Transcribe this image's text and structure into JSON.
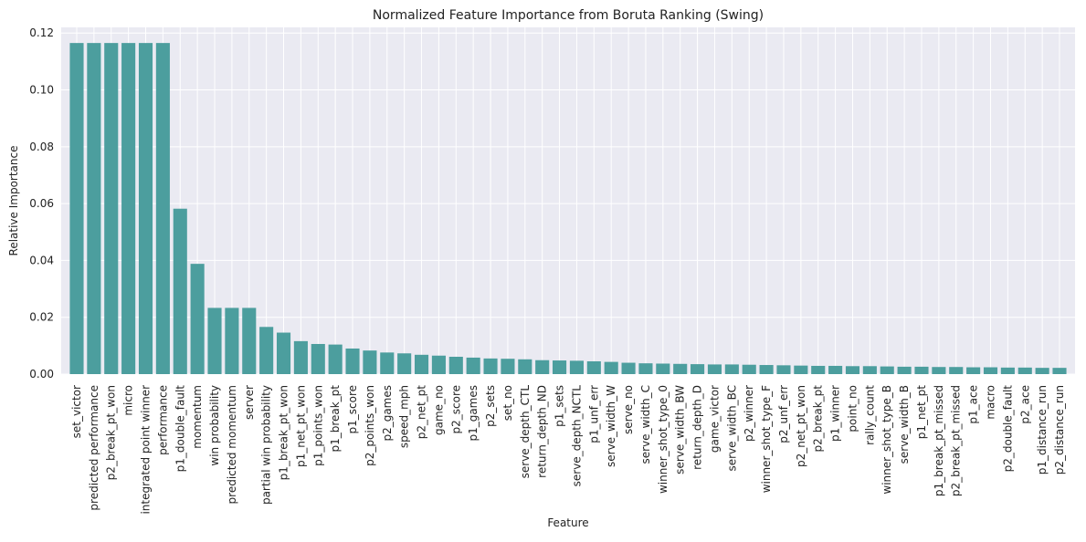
{
  "chart_data": {
    "type": "bar",
    "title": "Normalized Feature Importance from Boruta Ranking (Swing)",
    "xlabel": "Feature",
    "ylabel": "Relative Importance",
    "ylim": [
      0,
      0.122
    ],
    "yticks": [
      "0.00",
      "0.02",
      "0.04",
      "0.06",
      "0.08",
      "0.10",
      "0.12"
    ],
    "grid": true,
    "bar_color": "#4c9e9e",
    "background_color": "#eaeaf2",
    "categories": [
      "set_victor",
      "predicted performance",
      "p2_break_pt_won",
      "micro",
      "integrated point winner",
      "performance",
      "p1_double_fault",
      "momentum",
      "win probability",
      "predicted momentum",
      "server",
      "partial win probability",
      "p1_break_pt_won",
      "p1_net_pt_won",
      "p1_points_won",
      "p1_break_pt",
      "p1_score",
      "p2_points_won",
      "p2_games",
      "speed_mph",
      "p2_net_pt",
      "game_no",
      "p2_score",
      "p1_games",
      "p2_sets",
      "set_no",
      "serve_depth_CTL",
      "return_depth_ND",
      "p1_sets",
      "serve_depth_NCTL",
      "p1_unf_err",
      "serve_width_W",
      "serve_no",
      "serve_width_C",
      "winner_shot_type_0",
      "serve_width_BW",
      "return_depth_D",
      "game_victor",
      "serve_width_BC",
      "p2_winner",
      "winner_shot_type_F",
      "p2_unf_err",
      "p2_net_pt_won",
      "p2_break_pt",
      "p1_winner",
      "point_no",
      "rally_count",
      "winner_shot_type_B",
      "serve_width_B",
      "p1_net_pt",
      "p1_break_pt_missed",
      "p2_break_pt_missed",
      "p1_ace",
      "macro",
      "p2_double_fault",
      "p2_ace",
      "p1_distance_run",
      "p2_distance_run"
    ],
    "values": [
      0.1165,
      0.1165,
      0.1165,
      0.1165,
      0.1165,
      0.1165,
      0.0582,
      0.0388,
      0.0233,
      0.0233,
      0.0233,
      0.0166,
      0.0146,
      0.0116,
      0.0106,
      0.0104,
      0.009,
      0.0083,
      0.0076,
      0.0073,
      0.0068,
      0.0065,
      0.0061,
      0.0058,
      0.0055,
      0.0054,
      0.0052,
      0.0049,
      0.0048,
      0.0047,
      0.0045,
      0.0043,
      0.004,
      0.0038,
      0.0037,
      0.0036,
      0.0035,
      0.0034,
      0.0034,
      0.0033,
      0.0032,
      0.0031,
      0.003,
      0.0029,
      0.0029,
      0.0028,
      0.0028,
      0.0027,
      0.0026,
      0.0026,
      0.0025,
      0.0025,
      0.0024,
      0.0024,
      0.0023,
      0.0023,
      0.0022,
      0.0022
    ]
  }
}
